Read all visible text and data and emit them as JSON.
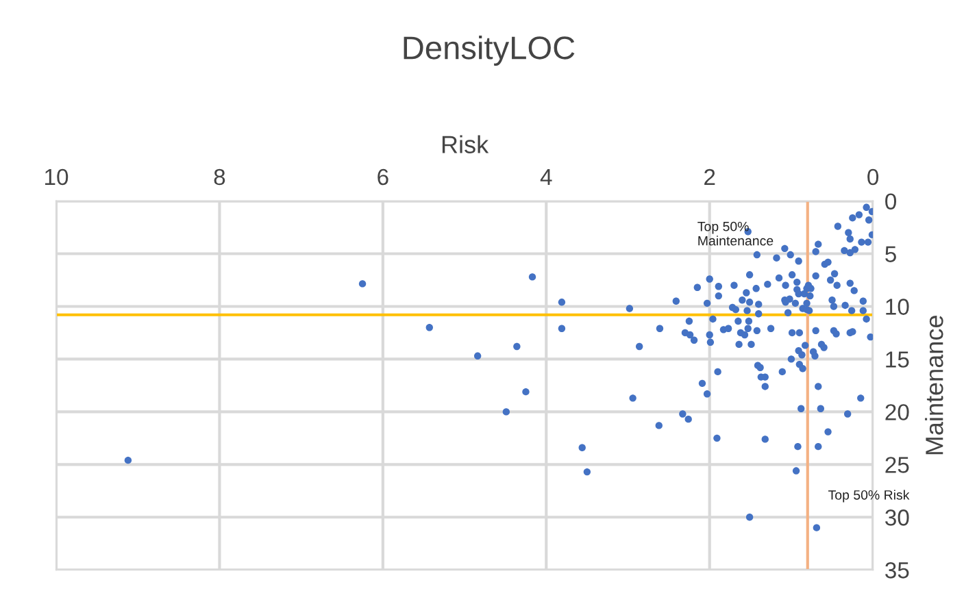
{
  "chart_data": {
    "type": "scatter",
    "title": "DensityLOC",
    "xlabel": "Risk",
    "ylabel": "Maintenance",
    "xlim": [
      10,
      0
    ],
    "xticks": [
      10,
      8,
      6,
      4,
      2,
      0
    ],
    "ylim": [
      35,
      0
    ],
    "yticks": [
      0,
      5,
      10,
      15,
      20,
      25,
      30,
      35
    ],
    "grid": true,
    "marker": "circle",
    "legend": false,
    "annotations": [
      "Top 50%\nMaintenance",
      "Top 50% Risk"
    ],
    "ref_lines": [
      {
        "axis": "y",
        "value": 10.8,
        "color": "#ffc000"
      },
      {
        "axis": "x",
        "value": 0.8,
        "color": "#f4b183"
      }
    ],
    "series": [
      {
        "color": "#4472c4",
        "x": [
          6.25,
          4.17,
          5.43,
          4.84,
          4.36,
          4.25,
          4.49,
          9.12,
          3.81,
          3.81,
          1.9,
          1.37,
          1.32,
          1.11,
          1.32,
          2.09,
          2.03,
          2.94,
          0.67,
          0.15,
          0.88,
          0.64,
          0.31,
          2.33,
          2.26,
          2.62,
          0.55,
          1.91,
          1.32,
          0.92,
          0.67,
          3.56,
          3.5,
          0.94,
          1.51,
          0.69,
          1.53,
          0.43,
          0.25,
          0.17,
          0.08,
          0.01,
          0.05,
          0.01,
          0.06,
          0.3,
          0.28,
          0.14,
          0.22,
          0.35,
          0.28,
          0.67,
          0.7,
          1.08,
          1.01,
          1.18,
          0.91,
          1.42,
          0.59,
          0.55,
          0.47,
          0.52,
          0.44,
          0.7,
          0.99,
          0.93,
          1.15,
          1.29,
          1.07,
          1.51,
          1.7,
          1.43,
          1.55,
          1.89,
          2.0,
          2.15,
          1.89,
          2.03,
          2.41,
          2.98,
          1.6,
          1.51,
          1.4,
          1.72,
          1.68,
          1.54,
          1.4,
          1.08,
          1.02,
          1.07,
          0.93,
          0.91,
          0.95,
          0.86,
          0.81,
          1.04,
          0.81,
          0.76,
          0.79,
          0.84,
          0.77,
          0.81,
          0.78,
          0.5,
          0.48,
          0.34,
          0.26,
          0.12,
          0.12,
          0.08,
          0.03,
          0.28,
          0.23,
          2.86,
          2.61,
          2.3,
          2.24,
          2.19,
          2.25,
          1.96,
          2.0,
          1.99,
          1.83,
          1.77,
          1.65,
          1.52,
          1.53,
          1.62,
          1.57,
          1.42,
          1.25,
          1.64,
          1.49,
          0.99,
          0.9,
          0.83,
          0.7,
          0.48,
          0.45,
          0.28,
          0.25,
          0.63,
          0.6,
          0.73,
          0.91,
          0.87,
          1.41,
          1.38,
          1.0,
          0.9,
          0.86,
          0.71
        ],
        "values": [
          7.85,
          7.2,
          12.0,
          14.7,
          13.8,
          18.1,
          20.0,
          24.6,
          9.6,
          12.1,
          16.2,
          16.7,
          16.7,
          16.2,
          17.6,
          17.3,
          18.3,
          18.7,
          17.6,
          18.7,
          19.7,
          19.7,
          20.2,
          20.2,
          20.7,
          21.3,
          21.9,
          22.5,
          22.6,
          23.3,
          23.3,
          23.4,
          25.7,
          25.6,
          30.0,
          31.0,
          2.9,
          2.4,
          1.6,
          1.3,
          0.6,
          1.0,
          1.8,
          3.2,
          3.9,
          3.0,
          3.6,
          3.9,
          4.6,
          4.7,
          4.9,
          4.1,
          4.8,
          4.5,
          5.1,
          5.4,
          5.7,
          5.1,
          6.0,
          5.8,
          6.9,
          7.5,
          8.0,
          7.1,
          7.0,
          7.7,
          7.3,
          7.9,
          8.0,
          7.0,
          8.0,
          8.3,
          8.7,
          8.1,
          7.4,
          8.2,
          9.0,
          9.7,
          9.5,
          10.2,
          9.4,
          9.6,
          9.8,
          10.1,
          10.3,
          10.4,
          10.7,
          9.4,
          9.3,
          9.6,
          8.4,
          8.8,
          9.7,
          10.2,
          10.3,
          10.6,
          8.3,
          8.3,
          8.0,
          8.8,
          9.0,
          9.7,
          10.4,
          9.4,
          10.0,
          9.9,
          10.4,
          9.5,
          10.4,
          11.2,
          12.9,
          7.8,
          8.5,
          13.8,
          12.1,
          12.5,
          12.7,
          13.2,
          11.4,
          11.2,
          12.7,
          13.4,
          12.2,
          12.1,
          11.4,
          11.4,
          12.1,
          12.5,
          12.7,
          12.3,
          12.1,
          13.6,
          13.6,
          12.5,
          12.5,
          13.7,
          12.3,
          12.3,
          12.6,
          12.5,
          12.4,
          13.6,
          13.9,
          14.3,
          14.2,
          14.6,
          15.6,
          15.8,
          15.0,
          15.5,
          15.9,
          14.7
        ]
      }
    ]
  }
}
